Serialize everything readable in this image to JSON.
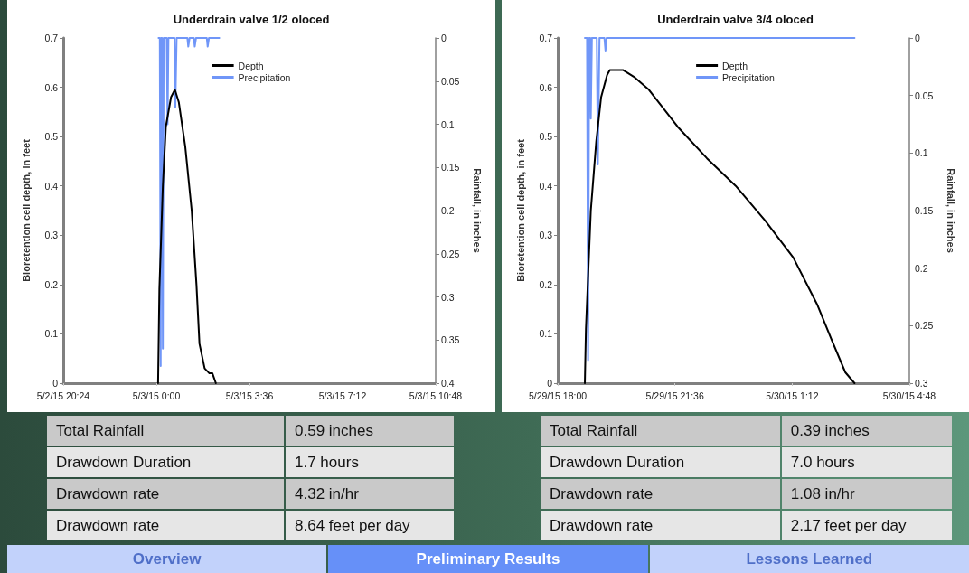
{
  "chart_data": [
    {
      "type": "line",
      "title": "Underdrain valve 1/2 oloced",
      "ylabel": "Bioretention cell depth, in feet",
      "y2label": "Rainfall, in inches",
      "xlim": [
        "--05-02T20:24",
        "--05-03T10:48"
      ],
      "xticks": [
        {
          "value": "--05-02T20:24",
          "label": "5/2/15 20:24"
        },
        {
          "value": "--05-03T00:00",
          "label": "5/3/15 0:00"
        },
        {
          "value": "--05-03T03:36",
          "label": "5/3/15 3:36"
        },
        {
          "value": "--05-03T07:12",
          "label": "5/3/15 7:12"
        },
        {
          "value": "--05-03T10:48",
          "label": "5/3/15 10:48"
        }
      ],
      "ylim": [
        0,
        0.7
      ],
      "yticks": [
        0,
        0.1,
        0.2,
        0.3,
        0.4,
        0.5,
        0.6,
        0.7
      ],
      "y2lim": [
        0.4,
        0
      ],
      "y2ticks": [
        0,
        0.05,
        0.1,
        0.15,
        0.2,
        0.25,
        0.3,
        0.35,
        0.4
      ],
      "grid": false,
      "legend": "top",
      "marker": "none",
      "line_style": "solid",
      "series": [
        {
          "name": "Depth",
          "color": "#000000",
          "x": [
            "--05-03T00:04",
            "--05-03T00:07",
            "--05-03T00:15",
            "--05-03T00:22",
            "--05-03T00:34",
            "--05-03T00:43",
            "--05-03T00:52",
            "--05-03T01:07",
            "--05-03T01:22",
            "--05-03T01:33",
            "--05-03T01:40",
            "--05-03T01:52",
            "--05-03T02:03",
            "--05-03T02:10",
            "--05-03T02:18"
          ],
          "values": [
            0,
            0.19,
            0.4,
            0.52,
            0.58,
            0.595,
            0.57,
            0.48,
            0.35,
            0.2,
            0.08,
            0.03,
            0.02,
            0.02,
            0
          ]
        },
        {
          "name": "Precipitation",
          "color": "#7096f8",
          "axis": "y2",
          "x": [
            "--05-03T00:05",
            "--05-03T00:08",
            "--05-03T00:10",
            "--05-03T00:11",
            "--05-03T00:13",
            "--05-03T00:15",
            "--05-03T00:17",
            "--05-03T00:24",
            "--05-03T00:26",
            "--05-03T00:28",
            "--05-03T00:42",
            "--05-03T00:44",
            "--05-03T00:47",
            "--05-03T01:12",
            "--05-03T01:14",
            "--05-03T01:17",
            "--05-03T01:27",
            "--05-03T01:29",
            "--05-03T01:32",
            "--05-03T01:57",
            "--05-03T01:59",
            "--05-03T02:02",
            "--05-03T02:26"
          ],
          "values": [
            0,
            0,
            0.38,
            0,
            0,
            0.36,
            0,
            0,
            0.1,
            0,
            0,
            0.08,
            0,
            0,
            0.01,
            0,
            0,
            0.01,
            0,
            0,
            0.01,
            0,
            0
          ]
        }
      ]
    },
    {
      "type": "line",
      "title": "Underdrain valve 3/4 oloced",
      "ylabel": "Bioretention cell depth, in feet",
      "y2label": "Rainfall, in inches",
      "xlim": [
        "--05-29T18:00",
        "--05-30T04:48"
      ],
      "xticks": [
        {
          "value": "--05-29T18:00",
          "label": "5/29/15 18:00"
        },
        {
          "value": "--05-29T21:36",
          "label": "5/29/15 21:36"
        },
        {
          "value": "--05-30T01:12",
          "label": "5/30/15 1:12"
        },
        {
          "value": "--05-30T04:48",
          "label": "5/30/15 4:48"
        }
      ],
      "ylim": [
        0,
        0.7
      ],
      "yticks": [
        0,
        0.1,
        0.2,
        0.3,
        0.4,
        0.5,
        0.6,
        0.7
      ],
      "y2lim": [
        0.3,
        0
      ],
      "y2ticks": [
        0,
        0.05,
        0.1,
        0.15,
        0.2,
        0.25,
        0.3
      ],
      "grid": false,
      "legend": "top",
      "marker": "none",
      "line_style": "solid",
      "series": [
        {
          "name": "Depth",
          "color": "#000000",
          "x": [
            "--05-29T18:50",
            "--05-29T18:52",
            "--05-29T19:01",
            "--05-29T19:11",
            "--05-29T19:20",
            "--05-29T19:31",
            "--05-29T19:36",
            "--05-29T20:00",
            "--05-29T20:22",
            "--05-29T20:48",
            "--05-29T21:41",
            "--05-29T22:35",
            "--05-29T23:28",
            "--05-30T00:22",
            "--05-30T01:14",
            "--05-30T01:58",
            "--05-30T02:24",
            "--05-30T02:50",
            "--05-30T03:07"
          ],
          "values": [
            0,
            0.11,
            0.35,
            0.49,
            0.58,
            0.625,
            0.635,
            0.635,
            0.62,
            0.595,
            0.52,
            0.456,
            0.4,
            0.33,
            0.255,
            0.16,
            0.09,
            0.022,
            0
          ]
        },
        {
          "name": "Precipitation",
          "color": "#7096f8",
          "axis": "y2",
          "x": [
            "--05-29T18:50",
            "--05-29T18:54",
            "--05-29T18:56",
            "--05-29T18:58",
            "--05-29T19:00",
            "--05-29T19:01",
            "--05-29T19:03",
            "--05-29T19:12",
            "--05-29T19:14",
            "--05-29T19:17",
            "--05-29T19:26",
            "--05-29T19:28",
            "--05-29T19:30",
            "--05-30T03:07"
          ],
          "values": [
            0,
            0,
            0.28,
            0,
            0,
            0.07,
            0,
            0,
            0.11,
            0,
            0,
            0.011,
            0,
            0
          ]
        }
      ]
    },
    {
      "type": "other",
      "annotations": [
        "Total Rainfall",
        "0.59 inches",
        "Drawdown Duration",
        "1.7 hours",
        "Drawdown rate",
        "4.32 in/hr",
        "Drawdown rate",
        "8.64 feet per day"
      ]
    },
    {
      "type": "other",
      "annotations": [
        "Total Rainfall",
        "0.39 inches",
        "Drawdown Duration",
        "7.0 hours",
        "Drawdown rate",
        "1.08 in/hr",
        "Drawdown rate",
        "2.17 feet per day"
      ]
    },
    {
      "type": "other",
      "annotations": [
        "Overview",
        "Preliminary Results",
        "Lessons Learned"
      ]
    }
  ]
}
